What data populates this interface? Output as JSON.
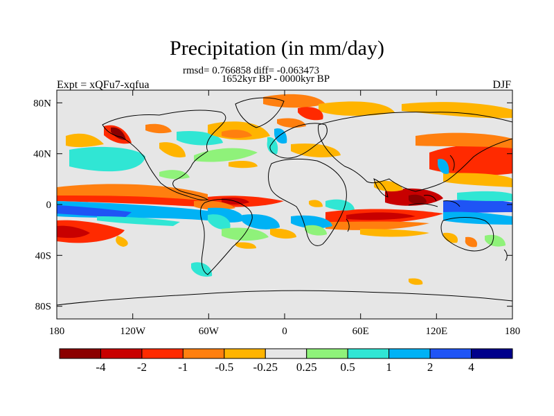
{
  "header": {
    "title": "Precipitation (in mm/day)",
    "stats": "rmsd= 0.766858 diff= -0.063473",
    "period": "1652kyr BP - 0000kyr BP",
    "experiment": "Expt = xQFu7-xqfua",
    "season": "DJF"
  },
  "map": {
    "background_color": "#e6e6e6",
    "lon_ticks": [
      "180",
      "120W",
      "60W",
      "0",
      "60E",
      "120E",
      "180"
    ],
    "lat_ticks": [
      "80N",
      "40N",
      "0",
      "40S",
      "80S"
    ]
  },
  "colorbar": {
    "colors": [
      "#8b0000",
      "#c80000",
      "#ff2a00",
      "#ff7f0f",
      "#ffb400",
      "#e6e6e6",
      "#8ff27a",
      "#30e6d4",
      "#00b2f5",
      "#1f54f5",
      "#00008b"
    ],
    "labels": [
      "-4",
      "-2",
      "-1",
      "-0.5",
      "-0.25",
      "0.25",
      "0.5",
      "1",
      "2",
      "4"
    ]
  }
}
